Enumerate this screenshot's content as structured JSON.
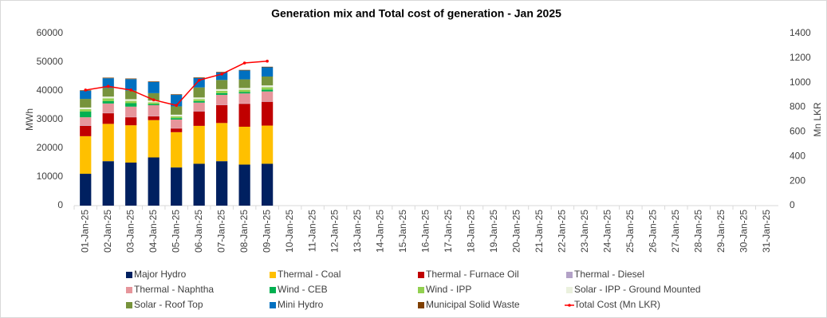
{
  "chart_data": {
    "type": "bar",
    "title": "Generation mix and Total cost of generation - Jan 2025",
    "y_label": "MWh",
    "y2_label": "Mn LKR",
    "categories": [
      "01-Jan-25",
      "02-Jan-25",
      "03-Jan-25",
      "04-Jan-25",
      "05-Jan-25",
      "06-Jan-25",
      "07-Jan-25",
      "08-Jan-25",
      "09-Jan-25",
      "10-Jan-25",
      "11-Jan-25",
      "12-Jan-25",
      "13-Jan-25",
      "14-Jan-25",
      "15-Jan-25",
      "16-Jan-25",
      "17-Jan-25",
      "18-Jan-25",
      "19-Jan-25",
      "20-Jan-25",
      "21-Jan-25",
      "22-Jan-25",
      "23-Jan-25",
      "24-Jan-25",
      "25-Jan-25",
      "26-Jan-25",
      "27-Jan-25",
      "28-Jan-25",
      "29-Jan-25",
      "30-Jan-25",
      "31-Jan-25"
    ],
    "ylim": [
      0,
      60000
    ],
    "yticks": [
      0,
      10000,
      20000,
      30000,
      40000,
      50000,
      60000
    ],
    "y2lim": [
      0,
      1400
    ],
    "y2ticks": [
      0,
      200,
      400,
      600,
      800,
      1000,
      1200,
      1400
    ],
    "stacked": true,
    "grid": false,
    "legend": "bottom",
    "series": [
      {
        "name": "Major Hydro",
        "color": "#002060",
        "values": [
          11100,
          15500,
          15000,
          16800,
          13300,
          14600,
          15500,
          14300,
          14600,
          null,
          null,
          null,
          null,
          null,
          null,
          null,
          null,
          null,
          null,
          null,
          null,
          null,
          null,
          null,
          null,
          null,
          null,
          null,
          null,
          null,
          null
        ]
      },
      {
        "name": "Thermal - Coal",
        "color": "#ffc000",
        "values": [
          13100,
          13000,
          13000,
          13000,
          12300,
          13200,
          13300,
          13200,
          13300,
          null,
          null,
          null,
          null,
          null,
          null,
          null,
          null,
          null,
          null,
          null,
          null,
          null,
          null,
          null,
          null,
          null,
          null,
          null,
          null,
          null,
          null
        ]
      },
      {
        "name": "Thermal - Furnace Oil",
        "color": "#c00000",
        "values": [
          3600,
          3700,
          2800,
          1300,
          1300,
          5000,
          6200,
          8000,
          8300,
          null,
          null,
          null,
          null,
          null,
          null,
          null,
          null,
          null,
          null,
          null,
          null,
          null,
          null,
          null,
          null,
          null,
          null,
          null,
          null,
          null,
          null
        ]
      },
      {
        "name": "Thermal - Diesel",
        "color": "#b3a2c7",
        "values": [
          100,
          100,
          100,
          100,
          100,
          100,
          100,
          100,
          100,
          null,
          null,
          null,
          null,
          null,
          null,
          null,
          null,
          null,
          null,
          null,
          null,
          null,
          null,
          null,
          null,
          null,
          null,
          null,
          null,
          null,
          null
        ]
      },
      {
        "name": "Thermal - Naphtha",
        "color": "#e6959b",
        "values": [
          2900,
          3300,
          3600,
          3800,
          3000,
          3000,
          3500,
          3500,
          3500,
          null,
          null,
          null,
          null,
          null,
          null,
          null,
          null,
          null,
          null,
          null,
          null,
          null,
          null,
          null,
          null,
          null,
          null,
          null,
          null,
          null,
          null
        ]
      },
      {
        "name": "Wind - CEB",
        "color": "#00b050",
        "values": [
          2000,
          800,
          1200,
          400,
          500,
          500,
          600,
          500,
          600,
          null,
          null,
          null,
          null,
          null,
          null,
          null,
          null,
          null,
          null,
          null,
          null,
          null,
          null,
          null,
          null,
          null,
          null,
          null,
          null,
          null,
          null
        ]
      },
      {
        "name": "Wind - IPP",
        "color": "#92d050",
        "values": [
          800,
          1000,
          800,
          600,
          600,
          700,
          800,
          800,
          900,
          null,
          null,
          null,
          null,
          null,
          null,
          null,
          null,
          null,
          null,
          null,
          null,
          null,
          null,
          null,
          null,
          null,
          null,
          null,
          null,
          null,
          null
        ]
      },
      {
        "name": "Solar - IPP - Ground Mounted",
        "color": "#ebf1de",
        "values": [
          600,
          600,
          600,
          600,
          600,
          600,
          600,
          600,
          600,
          null,
          null,
          null,
          null,
          null,
          null,
          null,
          null,
          null,
          null,
          null,
          null,
          null,
          null,
          null,
          null,
          null,
          null,
          null,
          null,
          null,
          null
        ]
      },
      {
        "name": "Solar - Roof Top",
        "color": "#77933c",
        "values": [
          3000,
          3000,
          3000,
          2600,
          2900,
          3500,
          3200,
          3000,
          3100,
          null,
          null,
          null,
          null,
          null,
          null,
          null,
          null,
          null,
          null,
          null,
          null,
          null,
          null,
          null,
          null,
          null,
          null,
          null,
          null,
          null,
          null
        ]
      },
      {
        "name": "Mini Hydro",
        "color": "#0070c0",
        "values": [
          2800,
          3400,
          4000,
          3900,
          4000,
          3300,
          2600,
          3100,
          3200,
          null,
          null,
          null,
          null,
          null,
          null,
          null,
          null,
          null,
          null,
          null,
          null,
          null,
          null,
          null,
          null,
          null,
          null,
          null,
          null,
          null,
          null
        ]
      },
      {
        "name": "Municipal Solid Waste",
        "color": "#7f3f00",
        "values": [
          200,
          200,
          200,
          200,
          200,
          200,
          200,
          200,
          200,
          null,
          null,
          null,
          null,
          null,
          null,
          null,
          null,
          null,
          null,
          null,
          null,
          null,
          null,
          null,
          null,
          null,
          null,
          null,
          null,
          null,
          null
        ]
      },
      {
        "name": "Total Cost (Mn LKR)",
        "color": "#ff0000",
        "type": "line",
        "axis": "y2",
        "values": [
          940,
          970,
          940,
          860,
          815,
          1020,
          1070,
          1160,
          1175,
          null,
          null,
          null,
          null,
          null,
          null,
          null,
          null,
          null,
          null,
          null,
          null,
          null,
          null,
          null,
          null,
          null,
          null,
          null,
          null,
          null,
          null
        ]
      }
    ]
  }
}
